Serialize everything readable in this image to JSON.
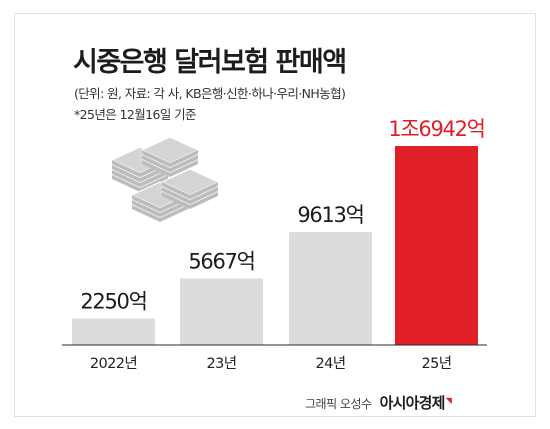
{
  "title": "시중은행 달러보험 판매액",
  "source": "(단위: 원, 자료: 각 사, KB은행·신한·하나·우리·NH농협)",
  "note": "*25년은 12월16일 기준",
  "credit": {
    "author": "그래픽 오성수",
    "brand": "아시아경제"
  },
  "colors": {
    "bar": "#dcdcdc",
    "highlight": "#e01f26",
    "label": "#1c1c1c",
    "baseline": "#2a2a2a",
    "stack": "#d4d4d4",
    "stack_dark": "#bcbcbc"
  },
  "decoration": {
    "name": "money-stack-icon"
  },
  "chart_data": {
    "type": "bar",
    "categories": [
      "2022년",
      "23년",
      "24년",
      "25년"
    ],
    "values": [
      2250,
      5667,
      9613,
      16942
    ],
    "value_labels": [
      "2250억",
      "5667억",
      "9613억",
      "1조6942억"
    ],
    "unit": "억 원",
    "highlight_index": 3,
    "ylim": [
      0,
      17000
    ],
    "grid": false,
    "legend": "none"
  }
}
